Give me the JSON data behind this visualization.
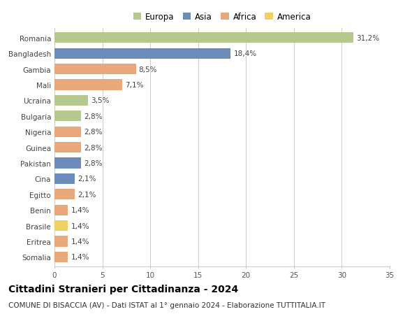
{
  "categories": [
    "Romania",
    "Bangladesh",
    "Gambia",
    "Mali",
    "Ucraina",
    "Bulgaria",
    "Nigeria",
    "Guinea",
    "Pakistan",
    "Cina",
    "Egitto",
    "Benin",
    "Brasile",
    "Eritrea",
    "Somalia"
  ],
  "values": [
    31.2,
    18.4,
    8.5,
    7.1,
    3.5,
    2.8,
    2.8,
    2.8,
    2.8,
    2.1,
    2.1,
    1.4,
    1.4,
    1.4,
    1.4
  ],
  "labels": [
    "31,2%",
    "18,4%",
    "8,5%",
    "7,1%",
    "3,5%",
    "2,8%",
    "2,8%",
    "2,8%",
    "2,8%",
    "2,1%",
    "2,1%",
    "1,4%",
    "1,4%",
    "1,4%",
    "1,4%"
  ],
  "continents": [
    "Europa",
    "Asia",
    "Africa",
    "Africa",
    "Europa",
    "Europa",
    "Africa",
    "Africa",
    "Asia",
    "Asia",
    "Africa",
    "Africa",
    "America",
    "Africa",
    "Africa"
  ],
  "colors": {
    "Europa": "#b5c98e",
    "Asia": "#6b8cba",
    "Africa": "#e8a87c",
    "America": "#f0d060"
  },
  "legend_order": [
    "Europa",
    "Asia",
    "Africa",
    "America"
  ],
  "title": "Cittadini Stranieri per Cittadinanza - 2024",
  "subtitle": "COMUNE DI BISACCIA (AV) - Dati ISTAT al 1° gennaio 2024 - Elaborazione TUTTITALIA.IT",
  "xlim": [
    0,
    35
  ],
  "xticks": [
    0,
    5,
    10,
    15,
    20,
    25,
    30,
    35
  ],
  "background_color": "#ffffff",
  "grid_color": "#cccccc",
  "bar_height": 0.68,
  "title_fontsize": 10,
  "subtitle_fontsize": 7.5,
  "label_fontsize": 7.5,
  "tick_fontsize": 7.5,
  "legend_fontsize": 8.5
}
